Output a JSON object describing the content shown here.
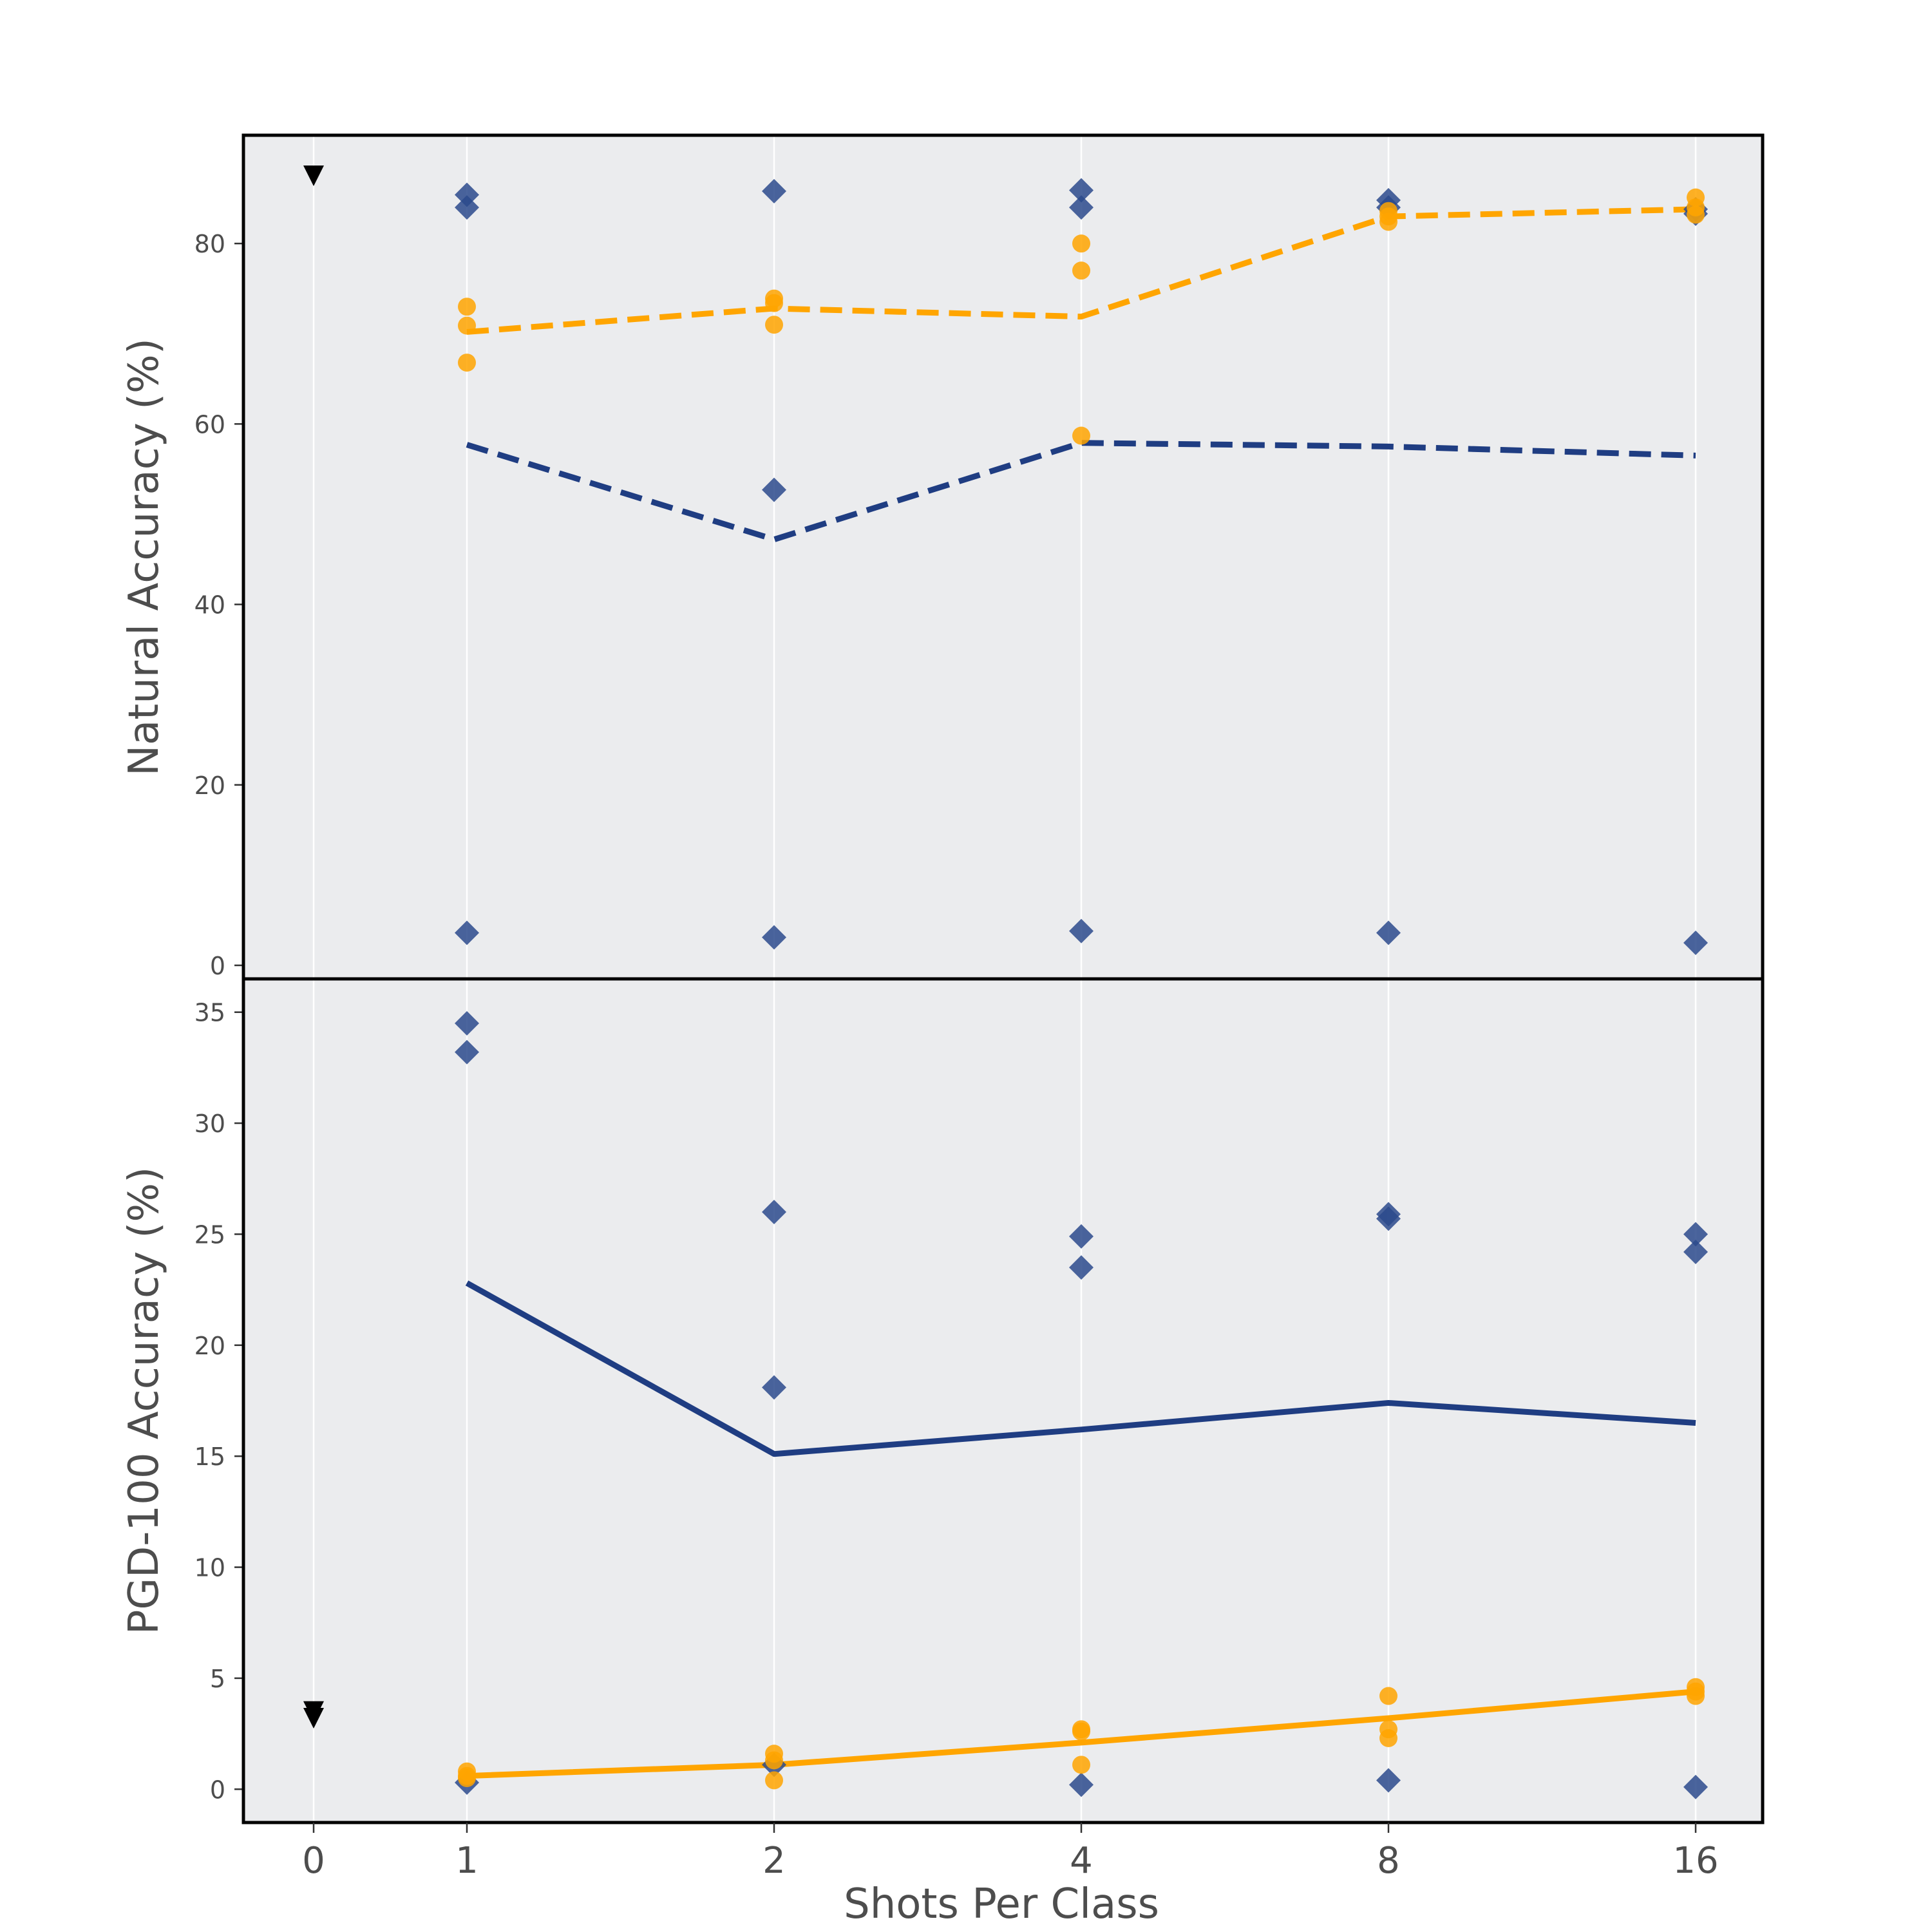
{
  "chart_data": [
    {
      "type": "scatter",
      "panel": "top",
      "ylabel": "Natural Accuracy (%)",
      "xlabel": "",
      "x_categories": [
        "0",
        "1",
        "2",
        "4",
        "8",
        "16"
      ],
      "ylim": [
        -1.5,
        92
      ],
      "yticks": [
        0,
        20,
        40,
        60,
        80
      ],
      "grid": "vertical",
      "series": [
        {
          "name": "navy-points",
          "marker": "diamond",
          "color": "#2b4a8c",
          "points": [
            {
              "x": "1",
              "y": 85.4
            },
            {
              "x": "1",
              "y": 84.0
            },
            {
              "x": "1",
              "y": 3.6
            },
            {
              "x": "2",
              "y": 85.8
            },
            {
              "x": "2",
              "y": 52.7
            },
            {
              "x": "2",
              "y": 3.1
            },
            {
              "x": "4",
              "y": 85.9
            },
            {
              "x": "4",
              "y": 84.0
            },
            {
              "x": "4",
              "y": 3.8
            },
            {
              "x": "8",
              "y": 84.8
            },
            {
              "x": "8",
              "y": 84.0
            },
            {
              "x": "8",
              "y": 3.6
            },
            {
              "x": "16",
              "y": 83.8
            },
            {
              "x": "16",
              "y": 83.3
            },
            {
              "x": "16",
              "y": 2.5
            }
          ]
        },
        {
          "name": "orange-points",
          "marker": "circle",
          "color": "#ffa500",
          "points": [
            {
              "x": "1",
              "y": 73.0
            },
            {
              "x": "1",
              "y": 70.9
            },
            {
              "x": "1",
              "y": 66.8
            },
            {
              "x": "2",
              "y": 73.9
            },
            {
              "x": "2",
              "y": 73.4
            },
            {
              "x": "2",
              "y": 71.0
            },
            {
              "x": "4",
              "y": 80.0
            },
            {
              "x": "4",
              "y": 77.0
            },
            {
              "x": "4",
              "y": 58.7
            },
            {
              "x": "8",
              "y": 83.6
            },
            {
              "x": "8",
              "y": 83.0
            },
            {
              "x": "8",
              "y": 82.4
            },
            {
              "x": "16",
              "y": 85.1
            },
            {
              "x": "16",
              "y": 84.0
            },
            {
              "x": "16",
              "y": 83.2
            }
          ]
        },
        {
          "name": "navy-mean",
          "line": "dashed",
          "color": "#1f3d82",
          "points": [
            {
              "x": "1",
              "y": 57.7
            },
            {
              "x": "2",
              "y": 47.2
            },
            {
              "x": "4",
              "y": 57.9
            },
            {
              "x": "8",
              "y": 57.5
            },
            {
              "x": "16",
              "y": 56.5
            }
          ]
        },
        {
          "name": "orange-mean",
          "line": "dashed",
          "color": "#ffa500",
          "points": [
            {
              "x": "1",
              "y": 70.2
            },
            {
              "x": "2",
              "y": 72.8
            },
            {
              "x": "4",
              "y": 71.9
            },
            {
              "x": "8",
              "y": 83.0
            },
            {
              "x": "16",
              "y": 83.8
            }
          ]
        },
        {
          "name": "zero-shot",
          "marker": "triangle-down",
          "color": "#000000",
          "points": [
            {
              "x": "0",
              "y": 87.5
            }
          ]
        }
      ]
    },
    {
      "type": "scatter",
      "panel": "bottom",
      "ylabel": "PGD-100 Accuracy (%)",
      "xlabel": "Shots Per Class",
      "x_categories": [
        "0",
        "1",
        "2",
        "4",
        "8",
        "16"
      ],
      "ylim": [
        -1.5,
        36.5
      ],
      "yticks": [
        0,
        5,
        10,
        15,
        20,
        25,
        30,
        35
      ],
      "grid": "vertical",
      "series": [
        {
          "name": "navy-points",
          "marker": "diamond",
          "color": "#2b4a8c",
          "points": [
            {
              "x": "1",
              "y": 34.5
            },
            {
              "x": "1",
              "y": 33.2
            },
            {
              "x": "1",
              "y": 0.3
            },
            {
              "x": "2",
              "y": 26.0
            },
            {
              "x": "2",
              "y": 18.1
            },
            {
              "x": "2",
              "y": 1.1
            },
            {
              "x": "4",
              "y": 24.9
            },
            {
              "x": "4",
              "y": 23.5
            },
            {
              "x": "4",
              "y": 0.2
            },
            {
              "x": "8",
              "y": 25.9
            },
            {
              "x": "8",
              "y": 25.7
            },
            {
              "x": "8",
              "y": 0.4
            },
            {
              "x": "16",
              "y": 25.0
            },
            {
              "x": "16",
              "y": 24.2
            },
            {
              "x": "16",
              "y": 0.1
            }
          ]
        },
        {
          "name": "orange-points",
          "marker": "circle",
          "color": "#ffa500",
          "points": [
            {
              "x": "1",
              "y": 0.8
            },
            {
              "x": "1",
              "y": 0.6
            },
            {
              "x": "1",
              "y": 0.5
            },
            {
              "x": "2",
              "y": 1.6
            },
            {
              "x": "2",
              "y": 1.3
            },
            {
              "x": "2",
              "y": 0.4
            },
            {
              "x": "4",
              "y": 2.7
            },
            {
              "x": "4",
              "y": 2.6
            },
            {
              "x": "4",
              "y": 1.1
            },
            {
              "x": "8",
              "y": 4.2
            },
            {
              "x": "8",
              "y": 2.7
            },
            {
              "x": "8",
              "y": 2.3
            },
            {
              "x": "16",
              "y": 4.6
            },
            {
              "x": "16",
              "y": 4.4
            },
            {
              "x": "16",
              "y": 4.2
            }
          ]
        },
        {
          "name": "navy-mean",
          "line": "solid",
          "color": "#1f3d82",
          "points": [
            {
              "x": "1",
              "y": 22.8
            },
            {
              "x": "2",
              "y": 15.1
            },
            {
              "x": "4",
              "y": 16.2
            },
            {
              "x": "8",
              "y": 17.4
            },
            {
              "x": "16",
              "y": 16.5
            }
          ]
        },
        {
          "name": "orange-mean",
          "line": "solid",
          "color": "#ffa500",
          "points": [
            {
              "x": "1",
              "y": 0.6
            },
            {
              "x": "2",
              "y": 1.1
            },
            {
              "x": "4",
              "y": 2.1
            },
            {
              "x": "8",
              "y": 3.2
            },
            {
              "x": "16",
              "y": 4.4
            }
          ]
        },
        {
          "name": "zero-shot",
          "marker": "triangle-down",
          "color": "#000000",
          "points": [
            {
              "x": "0",
              "y": 3.5
            },
            {
              "x": "0",
              "y": 3.2
            }
          ]
        }
      ]
    }
  ]
}
